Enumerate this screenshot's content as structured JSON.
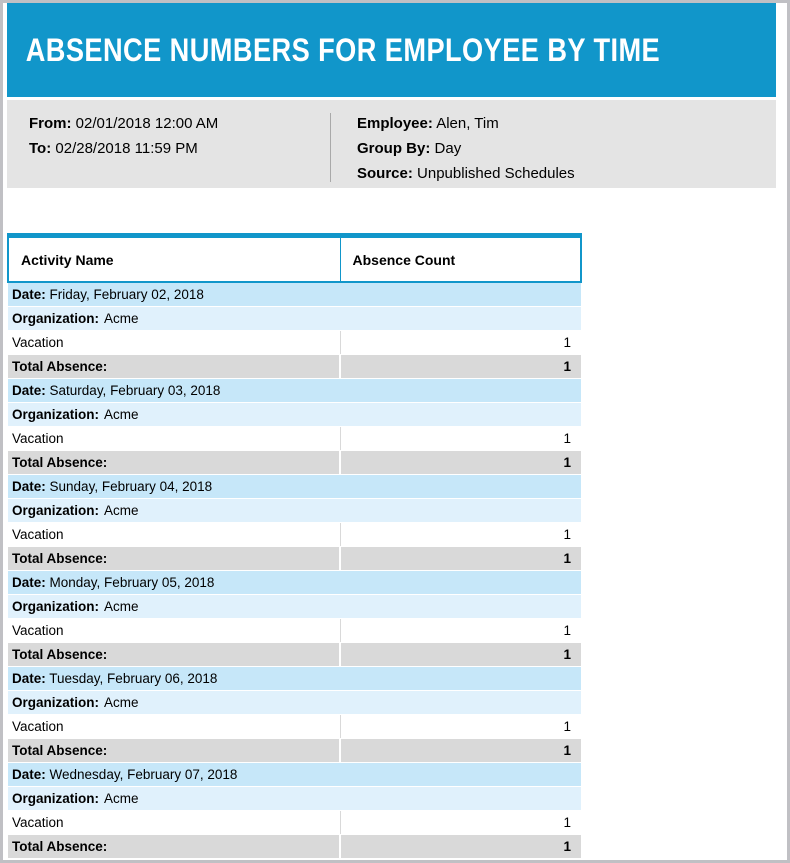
{
  "report": {
    "title": "ABSENCE NUMBERS FOR EMPLOYEE BY TIME",
    "info": {
      "from_label": "From:",
      "from_value": "02/01/2018 12:00 AM",
      "to_label": "To:",
      "to_value": "02/28/2018 11:59 PM",
      "employee_label": "Employee:",
      "employee_value": "Alen, Tim",
      "group_by_label": "Group By:",
      "group_by_value": "Day",
      "source_label": "Source:",
      "source_value": "Unpublished Schedules"
    },
    "table": {
      "columns": [
        "Activity Name",
        "Absence Count"
      ],
      "date_label": "Date:",
      "organization_label": "Organization:",
      "total_label": "Total Absence:",
      "groups": [
        {
          "date": "Friday, February 02, 2018",
          "organization": "Acme",
          "rows": [
            {
              "activity": "Vacation",
              "count": "1"
            }
          ],
          "total": "1"
        },
        {
          "date": "Saturday, February 03, 2018",
          "organization": "Acme",
          "rows": [
            {
              "activity": "Vacation",
              "count": "1"
            }
          ],
          "total": "1"
        },
        {
          "date": "Sunday, February 04, 2018",
          "organization": "Acme",
          "rows": [
            {
              "activity": "Vacation",
              "count": "1"
            }
          ],
          "total": "1"
        },
        {
          "date": "Monday, February 05, 2018",
          "organization": "Acme",
          "rows": [
            {
              "activity": "Vacation",
              "count": "1"
            }
          ],
          "total": "1"
        },
        {
          "date": "Tuesday, February 06, 2018",
          "organization": "Acme",
          "rows": [
            {
              "activity": "Vacation",
              "count": "1"
            }
          ],
          "total": "1"
        },
        {
          "date": "Wednesday, February 07, 2018",
          "organization": "Acme",
          "rows": [
            {
              "activity": "Vacation",
              "count": "1"
            }
          ],
          "total": "1"
        }
      ]
    },
    "colors": {
      "header_blue": "#1196ca",
      "date_row_blue": "#c6e7f9",
      "organization_row_blue": "#e0f1fc",
      "total_row_gray": "#d9d9d9",
      "info_band_gray": "#e4e4e4",
      "outer_border_gray": "#c0c0c4"
    }
  }
}
